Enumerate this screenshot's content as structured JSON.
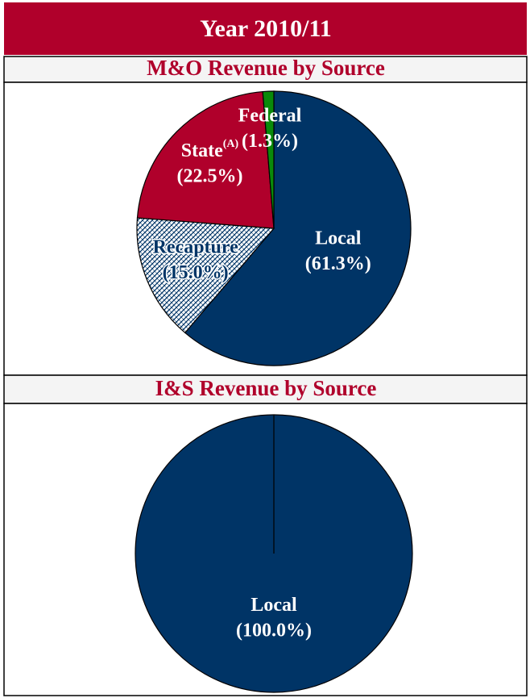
{
  "header": "Year 2010/11",
  "chart_data": [
    {
      "type": "pie",
      "title": "M&O Revenue by Source",
      "categories": [
        "Local",
        "Recapture",
        "State",
        "Federal"
      ],
      "category_notes": [
        null,
        null,
        "(A)",
        null
      ],
      "values": [
        61.3,
        15.0,
        22.5,
        1.3
      ],
      "value_labels": [
        "(61.3%)",
        "(15.0%)",
        "(22.5%)",
        "(1.3%)"
      ],
      "colors": [
        "#003466",
        "#003466",
        "#b0002b",
        "#0a8a0a"
      ],
      "hatched": [
        false,
        true,
        false,
        false
      ],
      "label_colors": [
        "#ffffff",
        "#003466",
        "#ffffff",
        "#ffffff"
      ]
    },
    {
      "type": "pie",
      "title": "I&S Revenue by Source",
      "categories": [
        "Local"
      ],
      "values": [
        100.0
      ],
      "value_labels": [
        "(100.0%)"
      ],
      "colors": [
        "#003466"
      ],
      "hatched": [
        false
      ],
      "label_colors": [
        "#ffffff"
      ]
    }
  ]
}
